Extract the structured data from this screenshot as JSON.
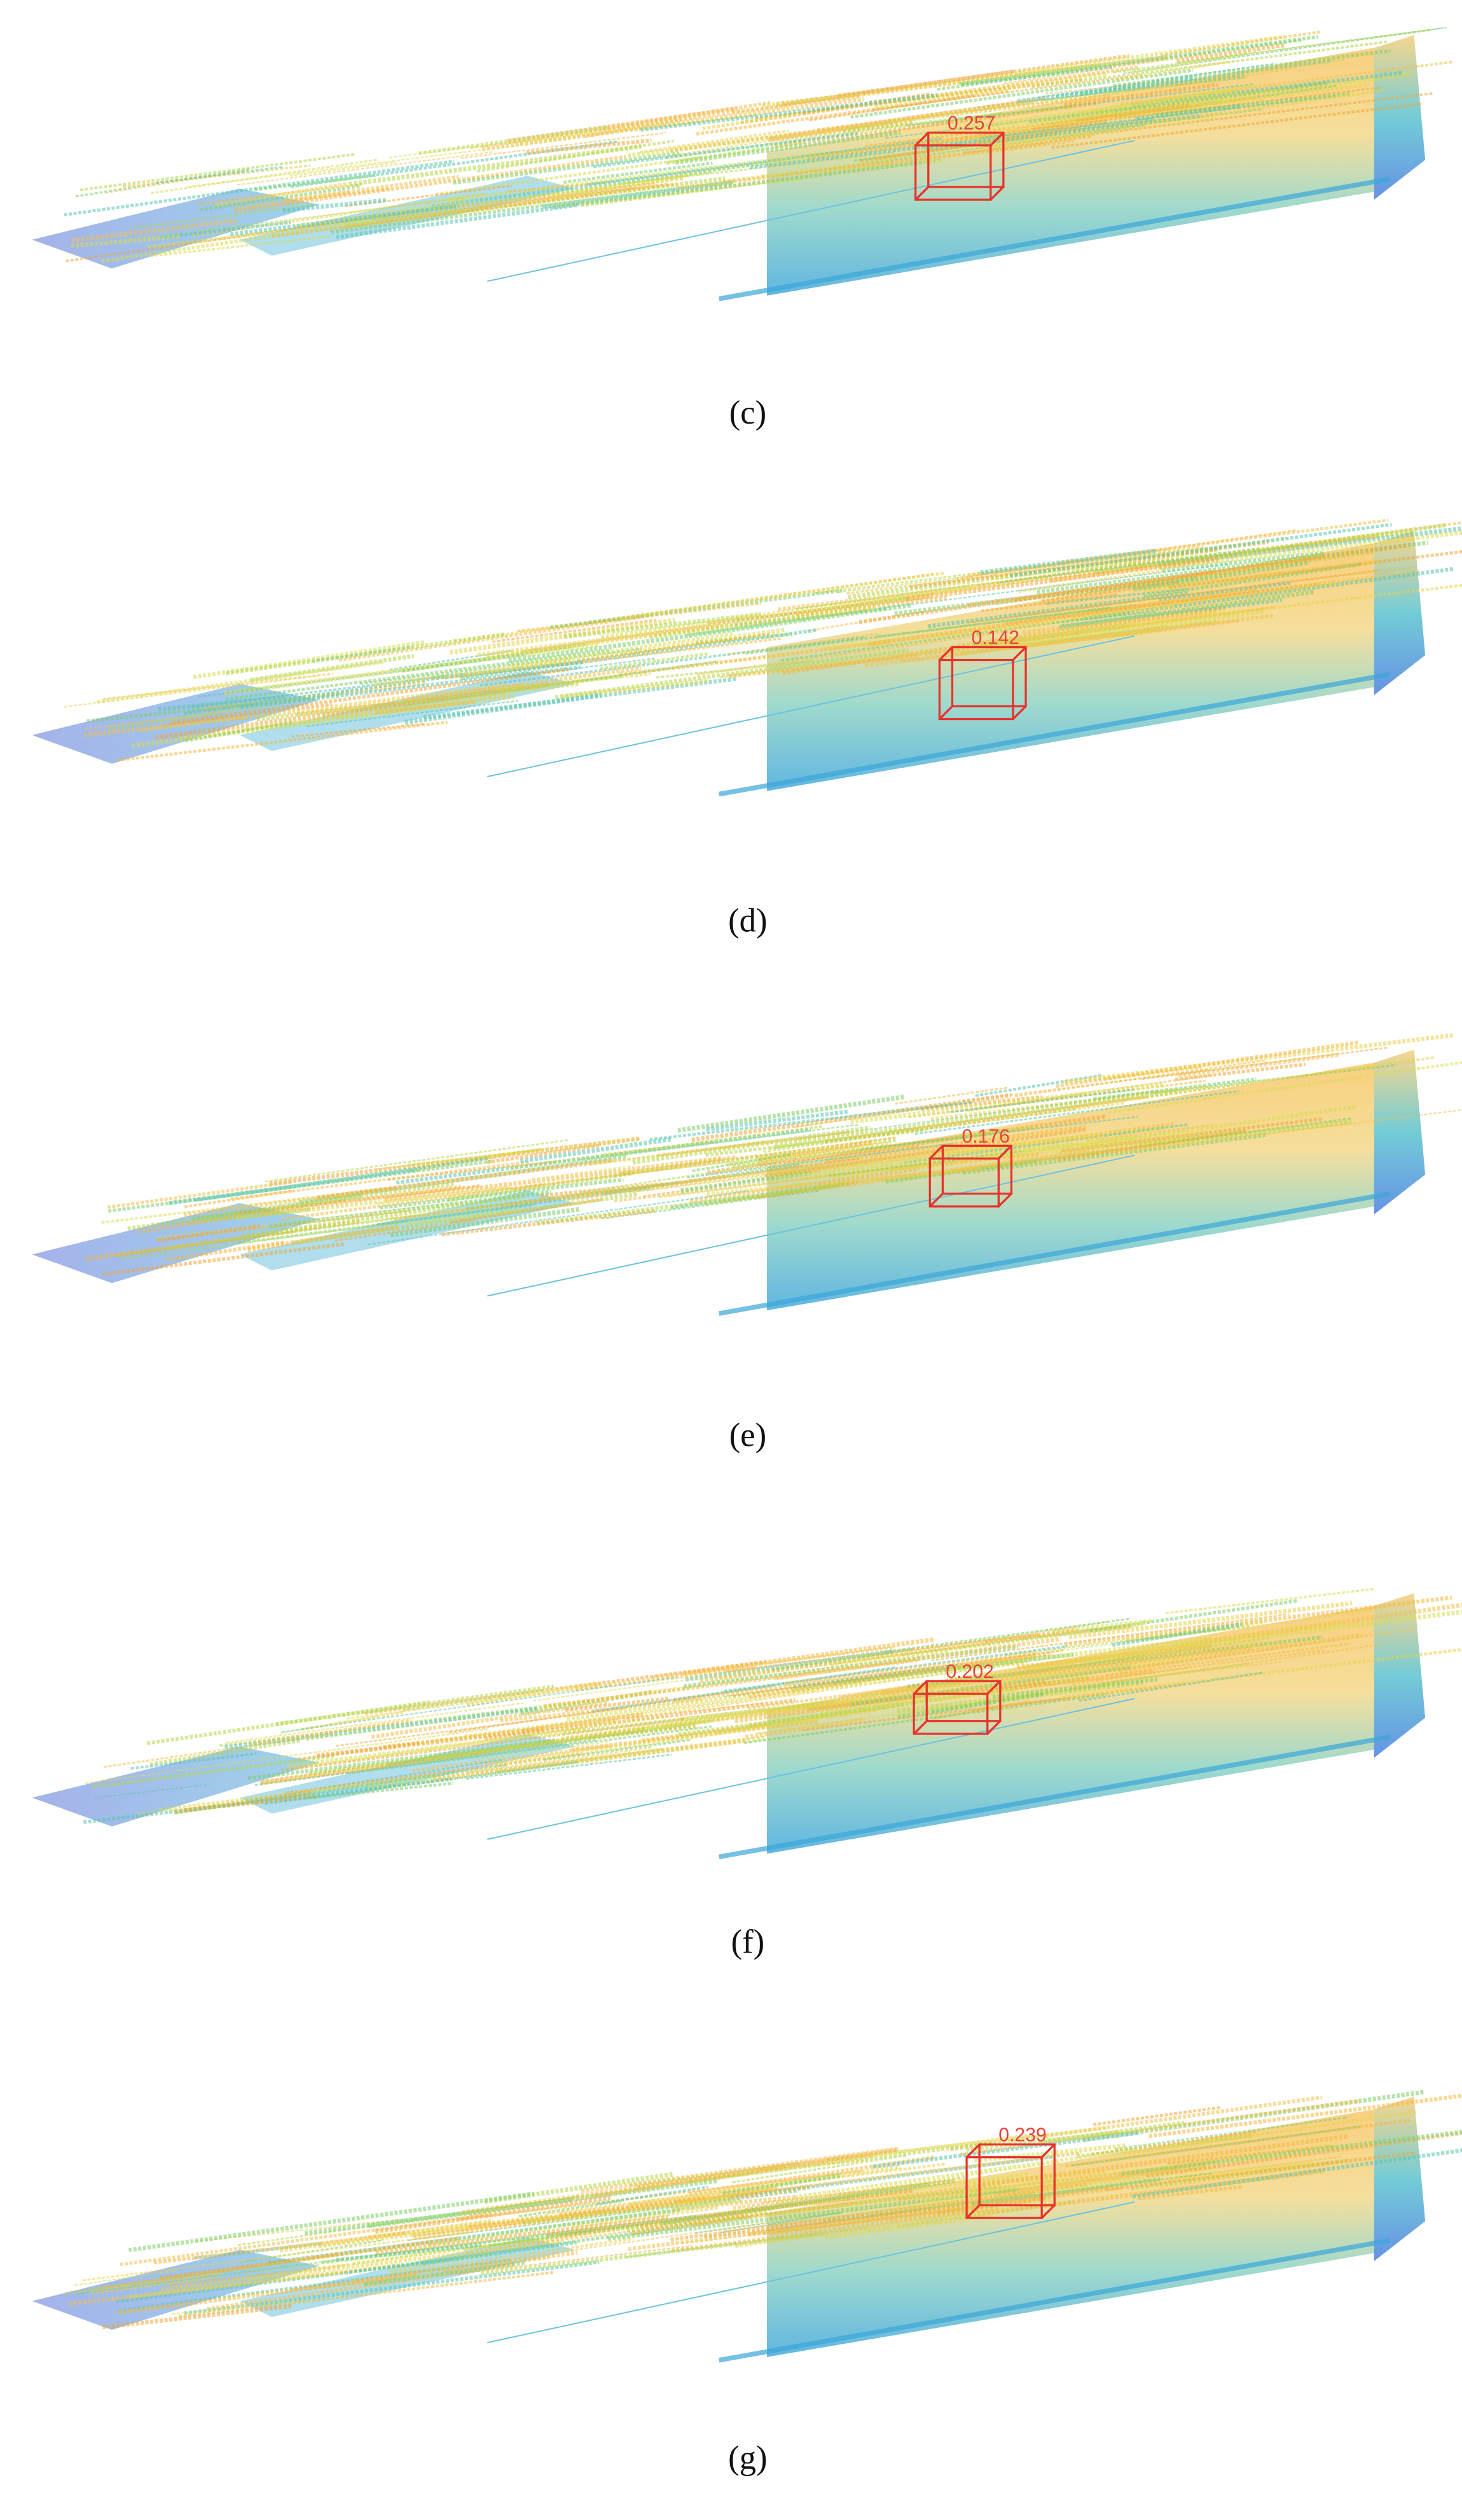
{
  "panels": [
    {
      "label": "(c)",
      "box_score": "0.257"
    },
    {
      "label": "(d)",
      "box_score": "0.142"
    },
    {
      "label": "(e)",
      "box_score": "0.176"
    },
    {
      "label": "(f)",
      "box_score": "0.202"
    },
    {
      "label": "(g)",
      "box_score": "0.239"
    }
  ]
}
